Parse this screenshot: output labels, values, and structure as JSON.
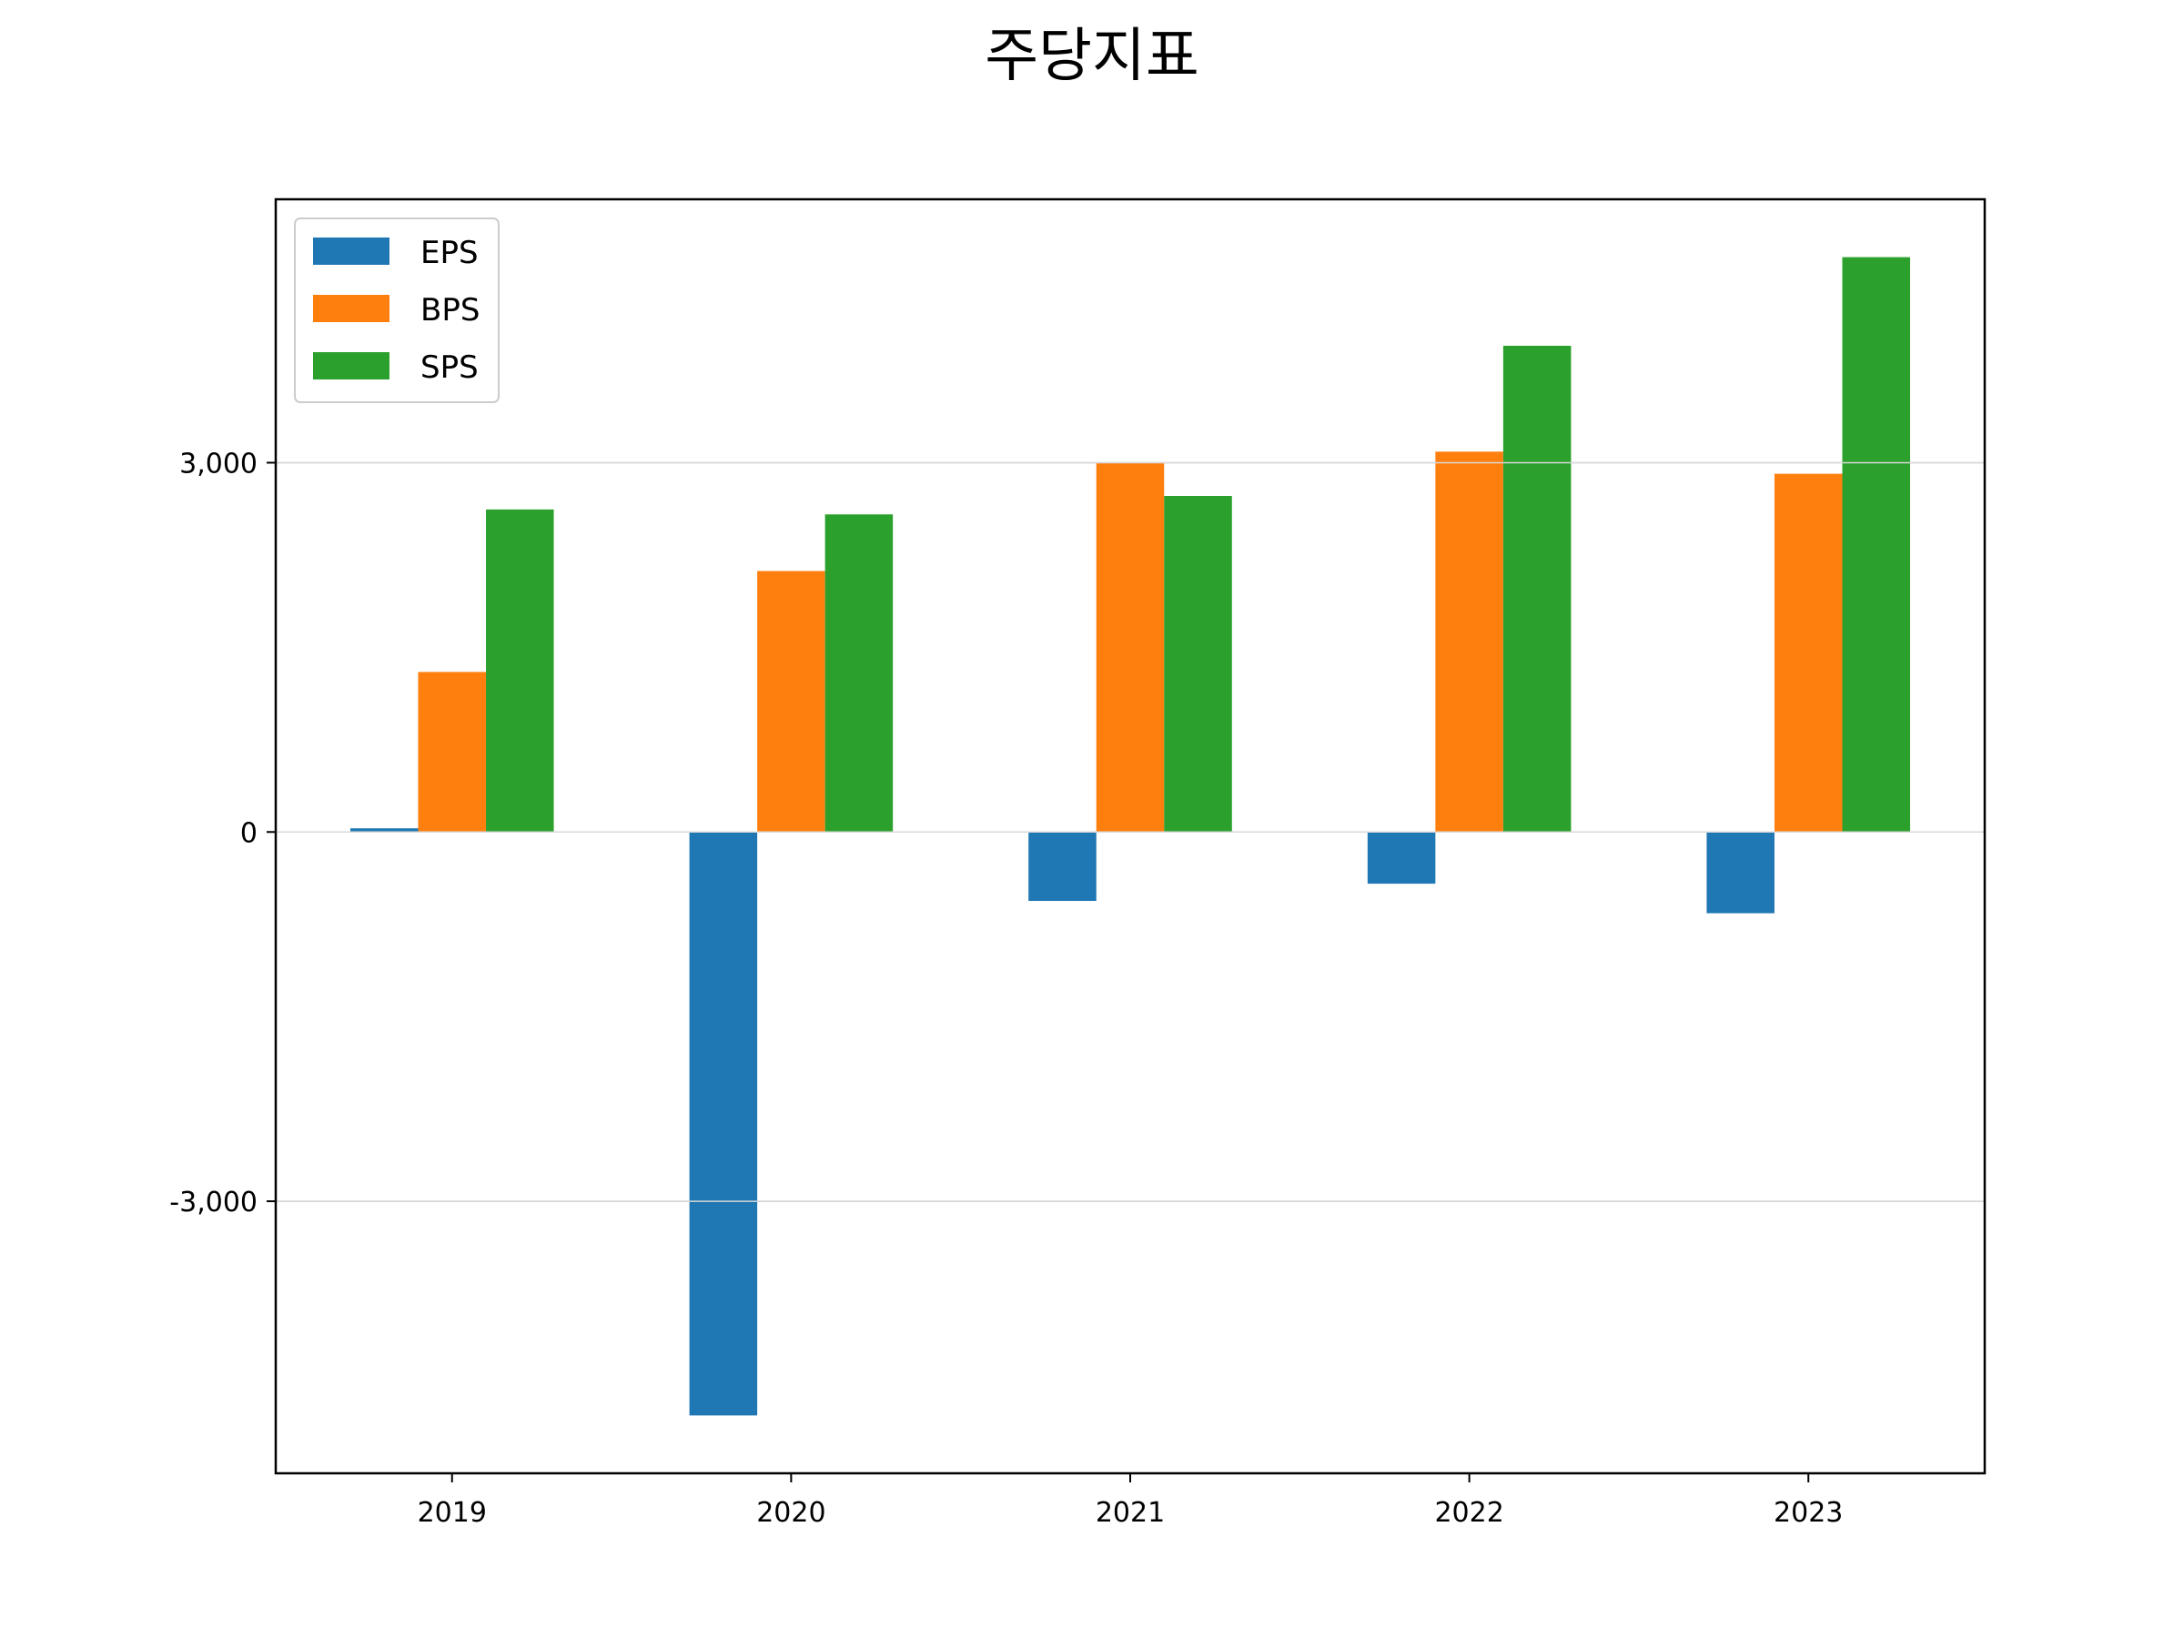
{
  "chart_data": {
    "type": "bar",
    "title": "주당지표",
    "xlabel": "",
    "ylabel": "",
    "categories": [
      "2019",
      "2020",
      "2021",
      "2022",
      "2023"
    ],
    "series": [
      {
        "name": "EPS",
        "color": "#1f77b4",
        "values": [
          30,
          -4740,
          -560,
          -420,
          -660
        ]
      },
      {
        "name": "BPS",
        "color": "#ff7f0e",
        "values": [
          1300,
          2120,
          3000,
          3090,
          2910
        ]
      },
      {
        "name": "SPS",
        "color": "#2ca02c",
        "values": [
          2620,
          2580,
          2730,
          3950,
          4670
        ]
      }
    ],
    "yticks": [
      -3000,
      0,
      3000
    ],
    "ytick_labels": [
      "-3,000",
      "0",
      "3,000"
    ],
    "ylim": [
      -5210,
      5140
    ],
    "grid": "horizontal",
    "legend_position": "top-left"
  }
}
